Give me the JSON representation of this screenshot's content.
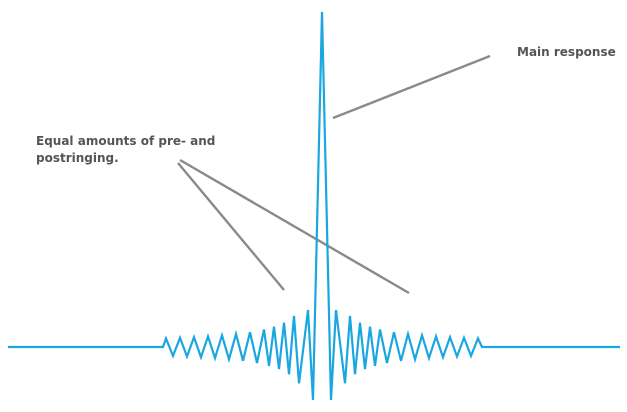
{
  "annotations": {
    "main_response": "Main response",
    "ringing_line1": "Equal amounts of pre- and",
    "ringing_line2": "postringing."
  },
  "colors": {
    "signal": "#1aa7e0",
    "pointer": "#8a8a8a",
    "text": "#555555"
  }
}
